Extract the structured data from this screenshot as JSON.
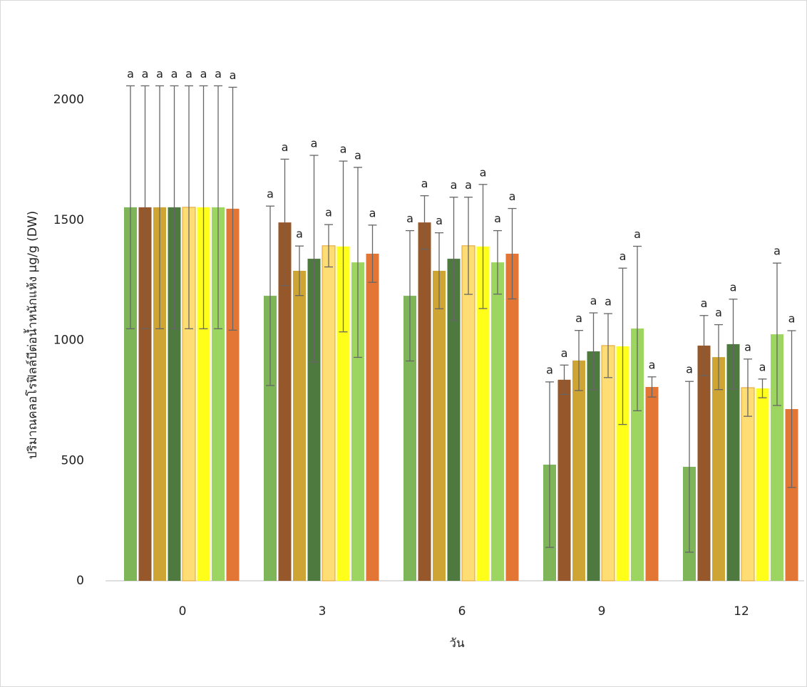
{
  "chart_data": {
    "type": "bar",
    "x_label": "วัน",
    "y_label": "ปริมาณคลอโรฟิลล์บีต่อน้ำหนักแห้ง µg/g (DW)",
    "categories": [
      "0",
      "3",
      "6",
      "9",
      "12"
    ],
    "ylim": [
      0,
      2000
    ],
    "yticks": [
      0,
      500,
      1000,
      1500,
      2000
    ],
    "series": [
      {
        "color": "#70ad47",
        "values": [
          1553,
          1185,
          1185,
          483,
          474
        ],
        "errors": [
          505,
          373,
          271,
          344,
          355
        ],
        "labels": [
          "a",
          "a",
          "a",
          "a",
          "a"
        ]
      },
      {
        "color": "#8b4513",
        "values": [
          1553,
          1490,
          1490,
          836,
          978
        ],
        "errors": [
          505,
          263,
          111,
          61,
          125
        ],
        "labels": [
          "a",
          "a",
          "a",
          "a",
          "a"
        ]
      },
      {
        "color": "#c99a1e",
        "values": [
          1553,
          1289,
          1289,
          916,
          930
        ],
        "errors": [
          505,
          103,
          158,
          125,
          135
        ],
        "labels": [
          "a",
          "a",
          "a",
          "a",
          "a"
        ]
      },
      {
        "color": "#3b6b2a",
        "values": [
          1553,
          1339,
          1339,
          954,
          984
        ],
        "errors": [
          505,
          430,
          256,
          160,
          187
        ],
        "labels": [
          "a",
          "a",
          "a",
          "a",
          "a"
        ]
      },
      {
        "color": "#ffd966",
        "values": [
          1553,
          1393,
          1393,
          978,
          803
        ],
        "errors": [
          505,
          88,
          202,
          133,
          119
        ],
        "labels": [
          "a",
          "a",
          "a",
          "a",
          "a"
        ]
      },
      {
        "color": "#ffff00",
        "values": [
          1553,
          1390,
          1390,
          975,
          800
        ],
        "errors": [
          505,
          355,
          258,
          325,
          39
        ],
        "labels": [
          "a",
          "a",
          "a",
          "a",
          "a"
        ]
      },
      {
        "color": "#92d050",
        "values": [
          1553,
          1324,
          1324,
          1049,
          1025
        ],
        "errors": [
          505,
          395,
          132,
          342,
          296
        ],
        "labels": [
          "a",
          "a",
          "a",
          "a",
          "a"
        ]
      },
      {
        "color": "#e0661f",
        "values": [
          1547,
          1360,
          1360,
          806,
          714
        ],
        "errors": [
          505,
          119,
          188,
          42,
          326
        ],
        "labels": [
          "a",
          "a",
          "a",
          "a",
          "a"
        ]
      }
    ]
  }
}
